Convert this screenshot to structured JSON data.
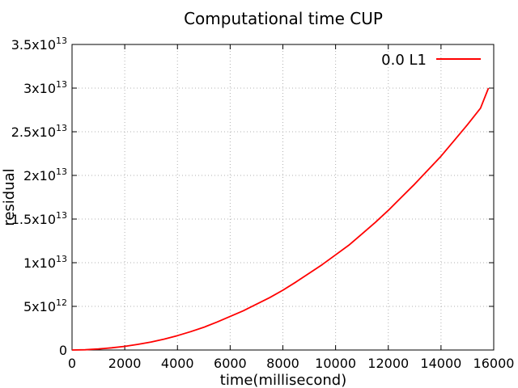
{
  "chart_data": {
    "type": "line",
    "title": "Computational time CUP",
    "xlabel": "time(millisecond)",
    "ylabel": "residual",
    "xlim": [
      0,
      16000
    ],
    "ylim": [
      0,
      35000000000000
    ],
    "grid": true,
    "legend_position": "top-right",
    "x_ticks": [
      {
        "value": 0,
        "label": "0"
      },
      {
        "value": 2000,
        "label": "2000"
      },
      {
        "value": 4000,
        "label": "4000"
      },
      {
        "value": 6000,
        "label": "6000"
      },
      {
        "value": 8000,
        "label": "8000"
      },
      {
        "value": 10000,
        "label": "10000"
      },
      {
        "value": 12000,
        "label": "12000"
      },
      {
        "value": 14000,
        "label": "14000"
      },
      {
        "value": 16000,
        "label": "16000"
      }
    ],
    "y_ticks": [
      {
        "value": 0,
        "base": "0",
        "exp": ""
      },
      {
        "value": 5000000000000,
        "base": "5x10",
        "exp": "12"
      },
      {
        "value": 10000000000000,
        "base": "1x10",
        "exp": "13"
      },
      {
        "value": 15000000000000,
        "base": "1.5x10",
        "exp": "13"
      },
      {
        "value": 20000000000000,
        "base": "2x10",
        "exp": "13"
      },
      {
        "value": 25000000000000,
        "base": "2.5x10",
        "exp": "13"
      },
      {
        "value": 30000000000000,
        "base": "3x10",
        "exp": "13"
      },
      {
        "value": 35000000000000,
        "base": "3.5x10",
        "exp": "13"
      }
    ],
    "series": [
      {
        "name": "0.0 L1",
        "color": "#ff0000",
        "x": [
          0,
          500,
          1000,
          1500,
          2000,
          2500,
          3000,
          3500,
          4000,
          4500,
          5000,
          5500,
          6000,
          6500,
          7000,
          7500,
          8000,
          8500,
          9000,
          9500,
          10000,
          10500,
          11000,
          11500,
          12000,
          12500,
          13000,
          13500,
          14000,
          14500,
          15000,
          15500,
          15800
        ],
        "y": [
          0,
          30000000000,
          120000000000,
          250000000000,
          420000000000,
          650000000000,
          920000000000,
          1250000000000,
          1650000000000,
          2100000000000,
          2600000000000,
          3200000000000,
          3850000000000,
          4500000000000,
          5250000000000,
          6000000000000,
          6850000000000,
          7800000000000,
          8800000000000,
          9800000000000,
          10900000000000,
          12000000000000,
          13300000000000,
          14600000000000,
          16000000000000,
          17500000000000,
          19000000000000,
          20600000000000,
          22200000000000,
          24000000000000,
          25800000000000,
          27700000000000,
          30000000000000
        ]
      }
    ]
  }
}
